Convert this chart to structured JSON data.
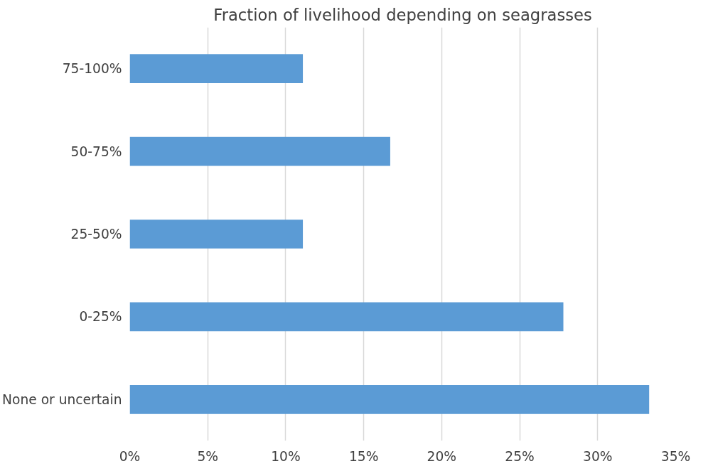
{
  "chart_data": {
    "type": "bar",
    "orientation": "horizontal",
    "title": "Fraction of livelihood depending on seagrasses",
    "categories": [
      "75-100%",
      "50-75%",
      "25-50%",
      "0-25%",
      "None or uncertain"
    ],
    "values": [
      11.1,
      16.7,
      11.1,
      27.8,
      33.3
    ],
    "color": "#5b9bd5",
    "xlim": [
      0,
      35
    ],
    "xticks": [
      {
        "value": 0,
        "label": "0%"
      },
      {
        "value": 5,
        "label": "5%"
      },
      {
        "value": 10,
        "label": "10%"
      },
      {
        "value": 15,
        "label": "15%"
      },
      {
        "value": 20,
        "label": "20%"
      },
      {
        "value": 25,
        "label": "25%"
      },
      {
        "value": 30,
        "label": "30%"
      },
      {
        "value": 35,
        "label": "35%"
      }
    ],
    "grid": "x"
  }
}
